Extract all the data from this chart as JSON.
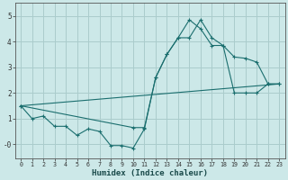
{
  "xlabel": "Humidex (Indice chaleur)",
  "background_color": "#cce8e8",
  "grid_color": "#aacccc",
  "line_color": "#1a6e6e",
  "xlim": [
    -0.5,
    23.5
  ],
  "ylim": [
    -0.55,
    5.5
  ],
  "xticks": [
    0,
    1,
    2,
    3,
    4,
    5,
    6,
    7,
    8,
    9,
    10,
    11,
    12,
    13,
    14,
    15,
    16,
    17,
    18,
    19,
    20,
    21,
    22,
    23
  ],
  "yticks": [
    0,
    1,
    2,
    3,
    4,
    5
  ],
  "ytick_labels": [
    "-0",
    "1",
    "2",
    "3",
    "4",
    "5"
  ],
  "curve1_x": [
    0,
    1,
    2,
    3,
    4,
    5,
    6,
    7,
    8,
    9,
    10,
    11,
    12,
    13,
    14,
    15,
    16,
    17,
    18,
    19,
    20,
    21,
    22,
    23
  ],
  "curve1_y": [
    1.5,
    1.0,
    1.1,
    0.7,
    0.7,
    0.35,
    0.6,
    0.5,
    -0.05,
    -0.05,
    -0.15,
    0.6,
    2.6,
    3.5,
    4.15,
    4.15,
    4.85,
    4.15,
    3.85,
    3.4,
    3.35,
    3.2,
    2.35,
    2.35
  ],
  "curve2_x": [
    0,
    10,
    11,
    12,
    13,
    14,
    15,
    16,
    17,
    18,
    19,
    20,
    21,
    22,
    23
  ],
  "curve2_y": [
    1.5,
    0.65,
    0.65,
    2.6,
    3.5,
    4.15,
    4.85,
    4.5,
    3.85,
    3.85,
    2.0,
    2.0,
    2.0,
    2.35,
    2.35
  ],
  "line3_x": [
    0,
    23
  ],
  "line3_y": [
    1.5,
    2.35
  ]
}
